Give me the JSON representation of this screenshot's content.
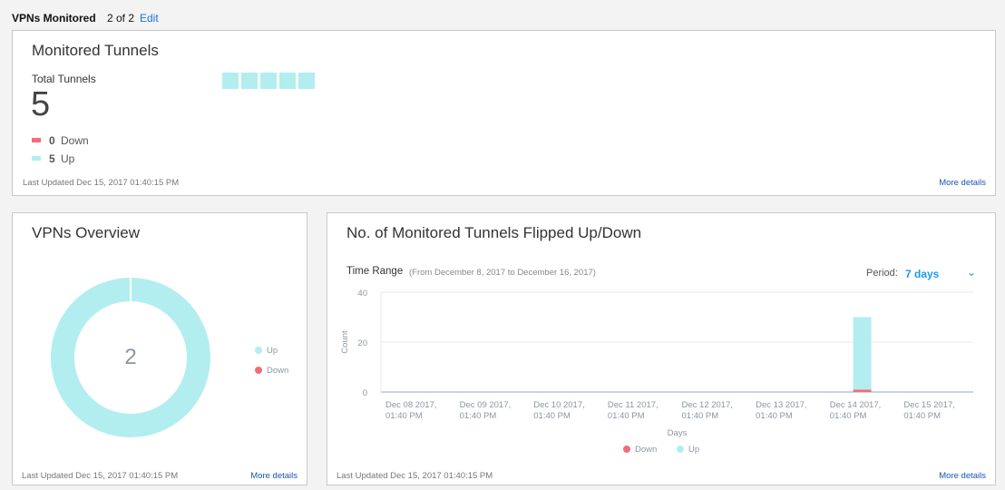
{
  "header": {
    "title": "VPNs Monitored",
    "count": "2 of 2",
    "edit_label": "Edit"
  },
  "colors": {
    "up": "#b2eef0",
    "down": "#f56b7a",
    "link": "#1a73d9",
    "period": "#1a9af0"
  },
  "monitored_tunnels": {
    "title": "Monitored Tunnels",
    "total_label": "Total Tunnels",
    "total": "5",
    "down_count": "0",
    "down_label": "Down",
    "up_count": "5",
    "up_label": "Up",
    "tunnel_states": [
      "up",
      "up",
      "up",
      "up",
      "up"
    ],
    "last_updated": "Last Updated Dec 15, 2017 01:40:15 PM",
    "more": "More details"
  },
  "vpns_overview": {
    "title": "VPNs Overview",
    "center_value": "2",
    "up": 2,
    "down": 0,
    "legend": [
      "Up",
      "Down"
    ],
    "last_updated": "Last Updated Dec 15, 2017 01:40:15 PM",
    "more": "More details"
  },
  "flips": {
    "title": "No. of Monitored Tunnels Flipped Up/Down",
    "time_range_label": "Time Range",
    "time_range_value": "(From December 8, 2017 to December 16, 2017)",
    "period_label": "Period:",
    "period_value": "7 days",
    "last_updated": "Last Updated Dec 15, 2017 01:40:15 PM",
    "more": "More details"
  },
  "chart_data": {
    "type": "bar",
    "stacked": true,
    "categories": [
      "Dec 08 2017, 01:40 PM",
      "Dec 09 2017, 01:40 PM",
      "Dec 10 2017, 01:40 PM",
      "Dec 11 2017, 01:40 PM",
      "Dec 12 2017, 01:40 PM",
      "Dec 13 2017, 01:40 PM",
      "Dec 14 2017, 01:40 PM",
      "Dec 15 2017, 01:40 PM"
    ],
    "category_lines": [
      [
        "Dec 08 2017,",
        "01:40 PM"
      ],
      [
        "Dec 09 2017,",
        "01:40 PM"
      ],
      [
        "Dec 10 2017,",
        "01:40 PM"
      ],
      [
        "Dec 11 2017,",
        "01:40 PM"
      ],
      [
        "Dec 12 2017,",
        "01:40 PM"
      ],
      [
        "Dec 13 2017,",
        "01:40 PM"
      ],
      [
        "Dec 14 2017,",
        "01:40 PM"
      ],
      [
        "Dec 15 2017,",
        "01:40 PM"
      ]
    ],
    "series": [
      {
        "name": "Down",
        "color": "#f56b7a",
        "values": [
          0,
          0,
          0,
          0,
          0,
          0,
          1,
          0
        ]
      },
      {
        "name": "Up",
        "color": "#b2eef0",
        "values": [
          0,
          0,
          0,
          0,
          0,
          0,
          29,
          0
        ]
      }
    ],
    "xlabel": "Days",
    "ylabel": "Count",
    "ylim": [
      0,
      40
    ],
    "yticks": [
      "0",
      "20",
      "40"
    ],
    "grid": true,
    "legend": "bottom"
  }
}
